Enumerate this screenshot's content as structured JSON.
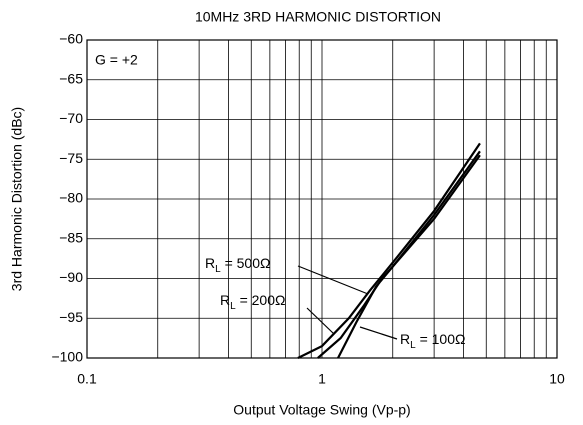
{
  "chart_data": {
    "type": "line",
    "title": "10MHz 3RD HARMONIC DISTORTION",
    "x_label": "Output Voltage Swing (Vp-p)",
    "y_label": "3rd Harmonic Distortion (dBc)",
    "annotation": "G = +2",
    "xscale": "log",
    "xlim": [
      0.1,
      10
    ],
    "xticks": [
      0.1,
      1,
      10
    ],
    "ylim": [
      -100,
      -60
    ],
    "yticks": [
      -100,
      -95,
      -90,
      -85,
      -80,
      -75,
      -70,
      -65,
      -60
    ],
    "grid": true,
    "series": [
      {
        "name": "RL = 500Ω",
        "color": "#000000",
        "x": [
          0.79,
          1.0,
          1.3,
          1.6,
          2.0,
          3.0,
          4.7
        ],
        "values": [
          -100,
          -98.5,
          -95,
          -91.5,
          -88,
          -81.5,
          -73
        ]
      },
      {
        "name": "RL = 200Ω",
        "color": "#000000",
        "x": [
          0.96,
          1.2,
          1.5,
          1.8,
          2.0,
          3.0,
          4.7
        ],
        "values": [
          -100,
          -97.5,
          -93.5,
          -90,
          -88.5,
          -82,
          -74
        ]
      },
      {
        "name": "RL = 100Ω",
        "color": "#000000",
        "x": [
          1.17,
          1.4,
          1.7,
          2.0,
          3.0,
          4.7
        ],
        "values": [
          -100,
          -95.5,
          -91,
          -88.5,
          -82.5,
          -74.5
        ]
      }
    ]
  }
}
